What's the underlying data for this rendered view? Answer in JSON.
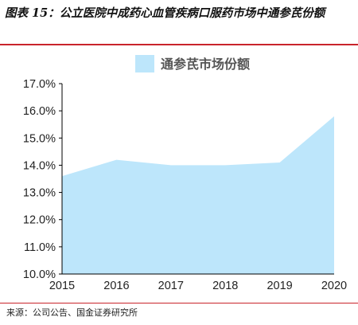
{
  "caption": "图表 15：公立医院中成药心血管疾病口服药市场中通参芪份额",
  "source": "来源：公司公告、国金证券研究所",
  "colors": {
    "area_fill": "#bde6fb",
    "rule": "#c9242b",
    "axis": "#000000"
  },
  "chart_data": {
    "type": "area",
    "x": [
      "2015",
      "2016",
      "2017",
      "2018",
      "2019",
      "2020"
    ],
    "series": [
      {
        "name": "通参芪市场份额",
        "values": [
          13.6,
          14.2,
          14.0,
          14.0,
          14.1,
          15.8
        ]
      }
    ],
    "ylim": [
      10.0,
      17.0
    ],
    "yticks": [
      "10.0%",
      "11.0%",
      "12.0%",
      "13.0%",
      "14.0%",
      "15.0%",
      "16.0%",
      "17.0%"
    ],
    "legend_position": "top-center",
    "grid": false
  }
}
